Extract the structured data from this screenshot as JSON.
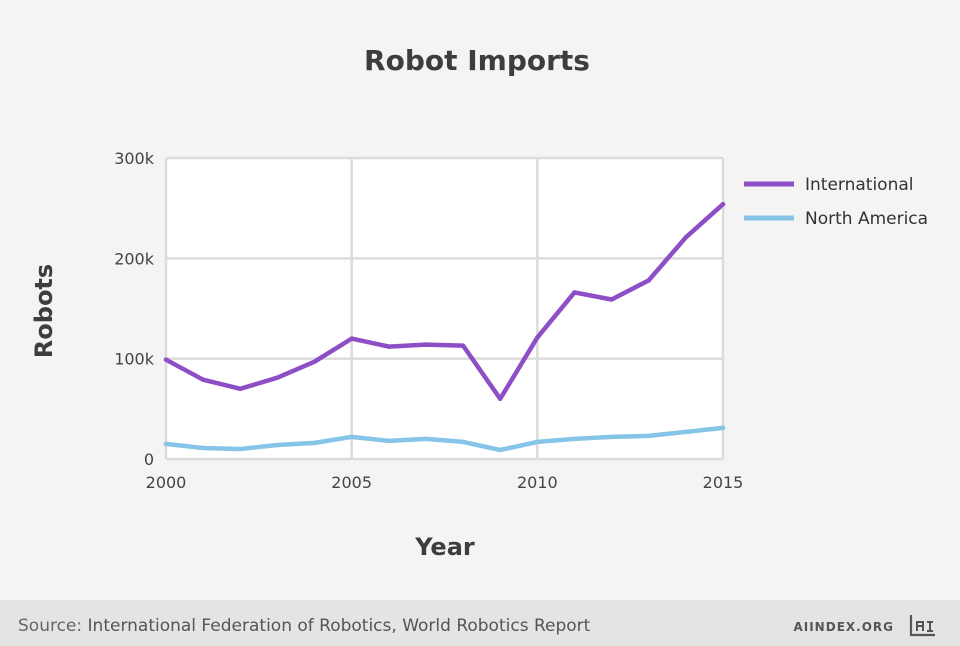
{
  "footer": {
    "source_label": "Source:",
    "source_text": "International Federation of Robotics, World Robotics Report",
    "brand": "AIINDEX.ORG",
    "brand_logo": "ai-logo-icon"
  },
  "colors": {
    "background": "#f4f4f4",
    "plot_background": "#ffffff",
    "grid": "#dcdcdc",
    "footer": "#e4e4e4"
  },
  "chart_data": {
    "type": "line",
    "title": "Robot Imports",
    "xlabel": "Year",
    "ylabel": "Robots",
    "x": [
      2000,
      2001,
      2002,
      2003,
      2004,
      2005,
      2006,
      2007,
      2008,
      2009,
      2010,
      2011,
      2012,
      2013,
      2014,
      2015
    ],
    "xlim": [
      2000,
      2015
    ],
    "ylim": [
      0,
      300000
    ],
    "xticks": [
      {
        "value": 2000,
        "label": "2000"
      },
      {
        "value": 2005,
        "label": "2005"
      },
      {
        "value": 2010,
        "label": "2010"
      },
      {
        "value": 2015,
        "label": "2015"
      }
    ],
    "yticks": [
      {
        "value": 0,
        "label": "0"
      },
      {
        "value": 100000,
        "label": "100k"
      },
      {
        "value": 200000,
        "label": "200k"
      },
      {
        "value": 300000,
        "label": "300k"
      }
    ],
    "grid": true,
    "legend_position": "right",
    "series": [
      {
        "name": "International",
        "color": "#8e4ec6",
        "values": [
          99000,
          79000,
          70000,
          81000,
          97000,
          120000,
          112000,
          114000,
          113000,
          60000,
          121000,
          166000,
          159000,
          178000,
          221000,
          254000
        ]
      },
      {
        "name": "North America",
        "color": "#86c5e8",
        "values": [
          15000,
          11000,
          10000,
          14000,
          16000,
          22000,
          18000,
          20000,
          17000,
          9000,
          17000,
          20000,
          22000,
          23000,
          27000,
          31000
        ]
      }
    ]
  }
}
